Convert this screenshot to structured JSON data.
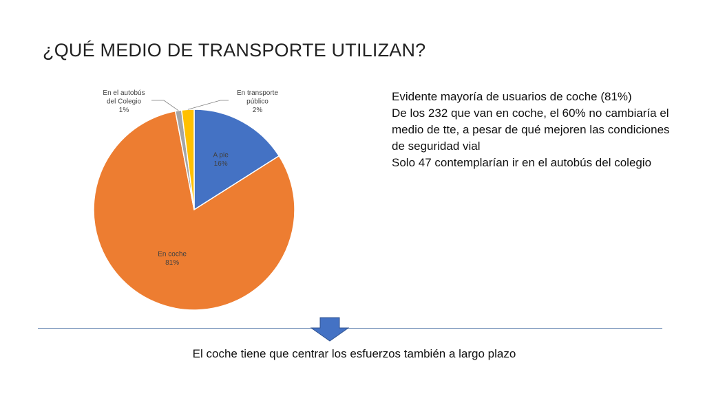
{
  "slide": {
    "title": "¿QUÉ MEDIO DE TRANSPORTE UTILIZAN?",
    "findings": [
      "Evidente mayoría de usuarios de coche (81%)",
      "De los 232 que van en coche, el 60% no cambiaría el medio de tte, a pesar de qué mejoren las condiciones de seguridad vial",
      "Solo 47 contemplarían ir en el autobús del colegio"
    ],
    "conclusion": "El coche tiene que centrar los esfuerzos también a largo plazo"
  },
  "chart_data": {
    "type": "pie",
    "title": "",
    "slices": [
      {
        "label": "A pie",
        "pct_text": "16%",
        "value": 16,
        "color": "#4472C4"
      },
      {
        "label": "En coche",
        "pct_text": "81%",
        "value": 81,
        "color": "#ED7D31"
      },
      {
        "label": "En el autobús del Colegio",
        "pct_text": "1%",
        "value": 1,
        "color": "#A5A5A5"
      },
      {
        "label": "En transporte público",
        "pct_text": "2%",
        "value": 2,
        "color": "#FFC000"
      }
    ]
  },
  "colors": {
    "divider": "#6d8bb5",
    "arrow_fill": "#4472C4",
    "arrow_stroke": "#2f528f"
  }
}
